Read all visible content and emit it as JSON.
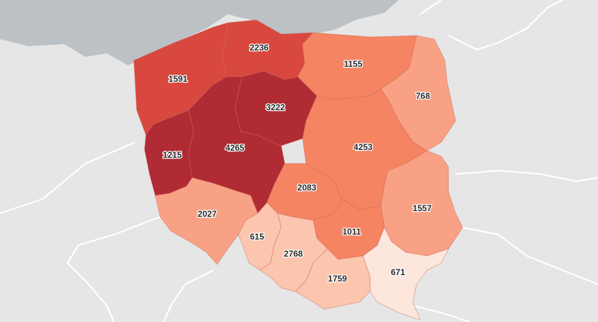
{
  "map": {
    "colors": {
      "background": "#e6e6e6",
      "sea": "#bcc1c5",
      "border": "#ffffff"
    },
    "regions": [
      {
        "id": "zachodniopomorskie",
        "value": "1591",
        "color": "#d9483f"
      },
      {
        "id": "pomorskie",
        "value": "2236",
        "color": "#d9483f"
      },
      {
        "id": "warminsko-mazurskie",
        "value": "1155",
        "color": "#f58463"
      },
      {
        "id": "podlaskie",
        "value": "768",
        "color": "#f9a185"
      },
      {
        "id": "kujawsko-pomorskie",
        "value": "3222",
        "color": "#b02b34"
      },
      {
        "id": "lubuskie",
        "value": "1215",
        "color": "#b02b34"
      },
      {
        "id": "wielkopolskie",
        "value": "4265",
        "color": "#b02b34"
      },
      {
        "id": "mazowieckie",
        "value": "4253",
        "color": "#f58463"
      },
      {
        "id": "lodzkie",
        "value": "2083",
        "color": "#f58463"
      },
      {
        "id": "lubelskie",
        "value": "1557",
        "color": "#f9a185"
      },
      {
        "id": "dolnoslaskie",
        "value": "2027",
        "color": "#f9a185"
      },
      {
        "id": "swietokrzyskie",
        "value": "1011",
        "color": "#f58463"
      },
      {
        "id": "opolskie",
        "value": "615",
        "color": "#fcc5ae"
      },
      {
        "id": "slaskie",
        "value": "2768",
        "color": "#fcc5ae"
      },
      {
        "id": "malopolskie",
        "value": "1759",
        "color": "#fcc5ae"
      },
      {
        "id": "podkarpackie",
        "value": "671",
        "color": "#fde6dc"
      }
    ]
  }
}
